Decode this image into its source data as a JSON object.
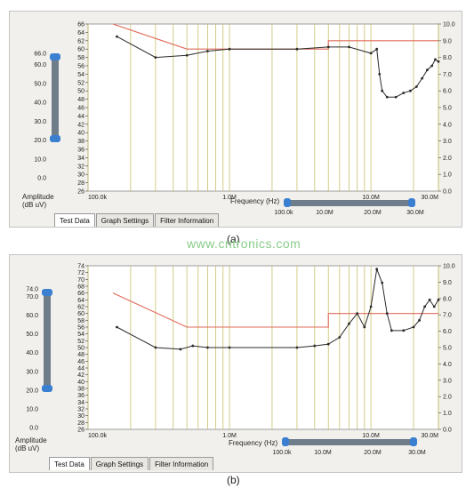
{
  "panels": [
    {
      "left_axis_ticks": [
        "66",
        "64",
        "62",
        "60",
        "58",
        "56",
        "54",
        "52",
        "50",
        "48",
        "46",
        "44",
        "42",
        "40",
        "38",
        "36",
        "34",
        "32",
        "30",
        "28",
        "26"
      ],
      "left_axis_range": [
        26,
        66
      ],
      "right_axis_ticks": [
        "10.0",
        "9.0",
        "8.0",
        "7.0",
        "6.0",
        "5.0",
        "4.0",
        "3.0",
        "2.0",
        "1.0",
        "0.0"
      ],
      "right_axis_range": [
        0,
        10
      ],
      "x_ticks": [
        "100.0k",
        "1.0M",
        "10.0M",
        "30.0M"
      ],
      "x_axis_label": "Frequency (Hz)",
      "amp_slider_ticks": [
        "66.0",
        "60.0",
        "50.0",
        "40.0",
        "30.0",
        "20.0",
        "10.0",
        "0.0"
      ],
      "amp_label": "Amplitude\n(dB uV)",
      "freq_slider_ticks": [
        "100.0k",
        "10.0M",
        "20.0M",
        "30.0M"
      ],
      "tabs": [
        "Test Data",
        "Graph Settings",
        "Filter Information"
      ],
      "caption": "(a)",
      "limit_line": [
        [
          0.15,
          66
        ],
        [
          0.5,
          60
        ],
        [
          5,
          60
        ],
        [
          5,
          62
        ],
        [
          30,
          62
        ]
      ],
      "data_line": [
        [
          0.16,
          63
        ],
        [
          0.3,
          58
        ],
        [
          0.5,
          58.5
        ],
        [
          0.7,
          59.5
        ],
        [
          1,
          60
        ],
        [
          3,
          60
        ],
        [
          5,
          60.5
        ],
        [
          7,
          60.5
        ],
        [
          10,
          59
        ],
        [
          11,
          60
        ],
        [
          11.5,
          54
        ],
        [
          12,
          50
        ],
        [
          13,
          48.5
        ],
        [
          15,
          48.5
        ],
        [
          17,
          49.5
        ],
        [
          19,
          50
        ],
        [
          21,
          51
        ],
        [
          23,
          53
        ],
        [
          25,
          55
        ],
        [
          27,
          56
        ],
        [
          28.5,
          57.5
        ],
        [
          30,
          57
        ]
      ]
    },
    {
      "left_axis_ticks": [
        "74",
        "72",
        "70",
        "68",
        "66",
        "64",
        "62",
        "60",
        "58",
        "56",
        "54",
        "52",
        "50",
        "48",
        "46",
        "44",
        "42",
        "40",
        "38",
        "36",
        "34",
        "32",
        "30",
        "28",
        "26"
      ],
      "left_axis_range": [
        26,
        74
      ],
      "right_axis_ticks": [
        "10.0",
        "9.0",
        "8.0",
        "7.0",
        "6.0",
        "5.0",
        "4.0",
        "3.0",
        "2.0",
        "1.0",
        "0.0"
      ],
      "right_axis_range": [
        0,
        10
      ],
      "x_ticks": [
        "100.0k",
        "1.0M",
        "10.0M",
        "30.0M"
      ],
      "x_axis_label": "Frequency (Hz)",
      "amp_slider_ticks": [
        "74.0",
        "70.0",
        "60.0",
        "50.0",
        "40.0",
        "30.0",
        "20.0",
        "10.0",
        "0.0"
      ],
      "amp_label": "Amplitude\n(dB uV)",
      "freq_slider_ticks": [
        "100.0k",
        "10.0M",
        "20.0M",
        "30.0M"
      ],
      "tabs": [
        "Test Data",
        "Graph Settings",
        "Filter Information"
      ],
      "caption": "(b)",
      "limit_line": [
        [
          0.15,
          66
        ],
        [
          0.5,
          56
        ],
        [
          5,
          56
        ],
        [
          5,
          60
        ],
        [
          30,
          60
        ]
      ],
      "data_line": [
        [
          0.16,
          56
        ],
        [
          0.3,
          50
        ],
        [
          0.45,
          49.5
        ],
        [
          0.55,
          50.5
        ],
        [
          0.7,
          50
        ],
        [
          1,
          50
        ],
        [
          3,
          50
        ],
        [
          4,
          50.5
        ],
        [
          5,
          51
        ],
        [
          6,
          53
        ],
        [
          7,
          57
        ],
        [
          8,
          60
        ],
        [
          9,
          56
        ],
        [
          10,
          62
        ],
        [
          11,
          73
        ],
        [
          12,
          69
        ],
        [
          13,
          60
        ],
        [
          14,
          55
        ],
        [
          17,
          55
        ],
        [
          20,
          56
        ],
        [
          22,
          58
        ],
        [
          24,
          62
        ],
        [
          26,
          64
        ],
        [
          28,
          62
        ],
        [
          30,
          64
        ]
      ]
    }
  ],
  "watermark": "www.cntronics.com",
  "colors": {
    "limit": "#e06a5a",
    "data": "#2a2a2a",
    "vgrid": "#c8c06a",
    "slider": "#6f7c8a",
    "knob": "#3a7fd0"
  }
}
